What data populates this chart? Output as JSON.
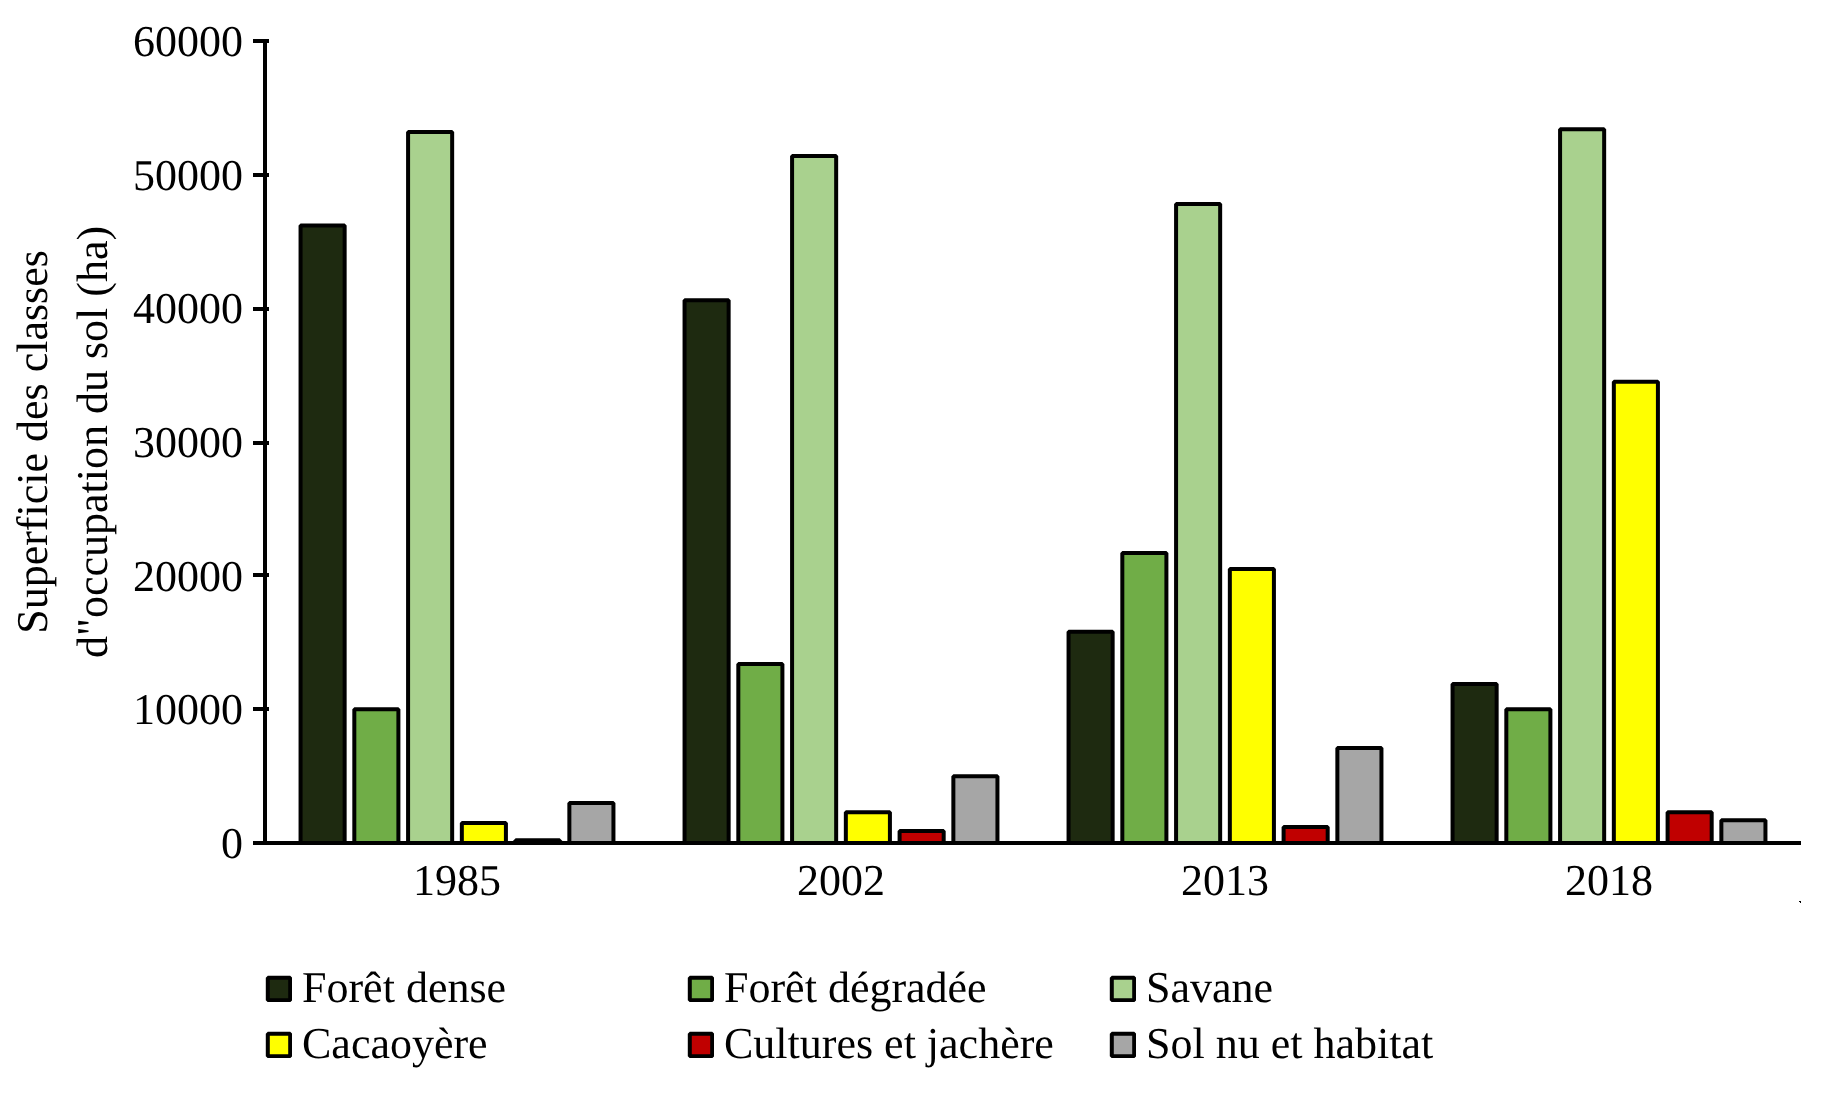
{
  "chart_data": {
    "type": "bar",
    "ylabel": "Superficie des classes\nd\"occupation du sol (ha)",
    "categories": [
      "1985",
      "2002",
      "2013",
      "2018"
    ],
    "series": [
      {
        "name": "Forêt dense",
        "color": "#1e2a10",
        "values": [
          46200,
          40600,
          15800,
          11900
        ]
      },
      {
        "name": "Forêt dégradée",
        "color": "#70ad47",
        "values": [
          10000,
          13400,
          21700,
          10000
        ]
      },
      {
        "name": "Savane",
        "color": "#a9d18e",
        "values": [
          53200,
          51400,
          47800,
          53400
        ]
      },
      {
        "name": "Cacaoyère",
        "color": "#ffff00",
        "values": [
          1500,
          2300,
          20500,
          34500
        ]
      },
      {
        "name": "Cultures et jachère",
        "color": "#c00000",
        "values": [
          200,
          900,
          1200,
          2300
        ]
      },
      {
        "name": "Sol nu et habitat",
        "color": "#a6a6a6",
        "values": [
          3000,
          5000,
          7100,
          1700
        ]
      }
    ],
    "ylim": [
      0,
      60000
    ],
    "yticks": [
      0,
      10000,
      20000,
      30000,
      40000,
      50000,
      60000
    ],
    "grid": false,
    "legend": "bottom"
  }
}
